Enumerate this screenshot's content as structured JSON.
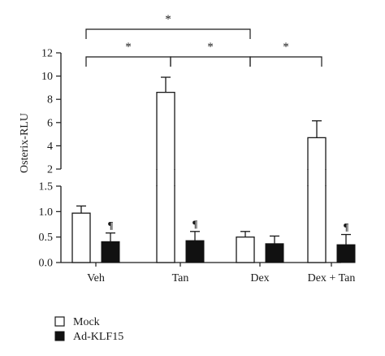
{
  "chart_data": {
    "type": "bar",
    "ylabel": "Osterix-RLU",
    "categories": [
      "Veh",
      "Tan",
      "Dex",
      "Dex + Tan"
    ],
    "series": [
      {
        "name": "Mock",
        "color": "#ffffff",
        "values": [
          0.97,
          8.6,
          0.5,
          4.7
        ],
        "errors": [
          0.14,
          1.3,
          0.11,
          1.45
        ],
        "markers": [
          "",
          "",
          "",
          ""
        ]
      },
      {
        "name": "Ad-KLF15",
        "color": "#111111",
        "values": [
          0.41,
          0.43,
          0.37,
          0.35
        ],
        "errors": [
          0.17,
          0.18,
          0.15,
          0.2
        ],
        "markers": [
          "¶",
          "¶",
          "",
          "¶"
        ]
      }
    ],
    "axis_break": {
      "lower": {
        "range": [
          0,
          1.5
        ],
        "ticks": [
          "0.0",
          "0.5",
          "1.0",
          "1.5"
        ]
      },
      "upper": {
        "range": [
          2,
          12
        ],
        "ticks": [
          "2",
          "4",
          "6",
          "8",
          "10",
          "12"
        ]
      }
    },
    "significance": [
      {
        "from": "Veh",
        "to": "Tan",
        "label": "*"
      },
      {
        "from": "Tan",
        "to": "Dex",
        "label": "*"
      },
      {
        "from": "Dex",
        "to": "Dex + Tan",
        "label": "*"
      },
      {
        "from": "Veh",
        "to": "Dex",
        "label": "*"
      }
    ],
    "legend": {
      "position": "bottom-left",
      "items": [
        "Mock",
        "Ad-KLF15"
      ]
    }
  }
}
